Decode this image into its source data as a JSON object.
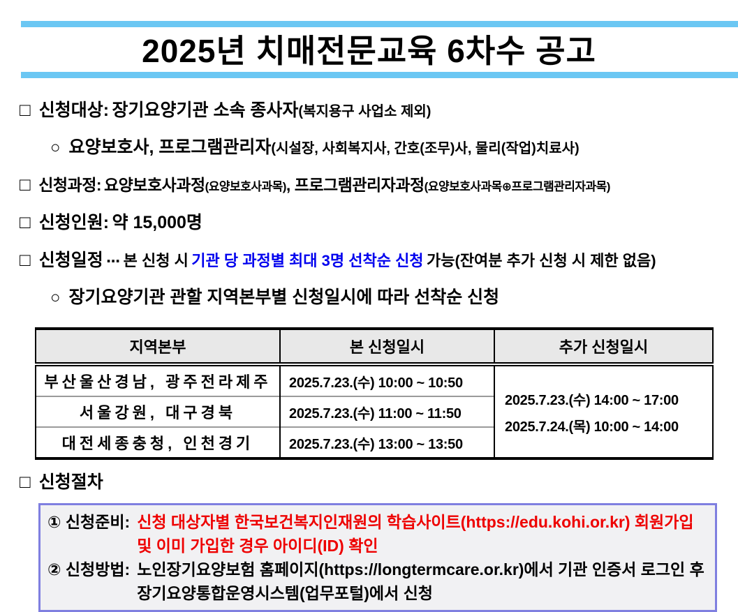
{
  "header": {
    "title": "2025년 치매전문교육 6차수 공고"
  },
  "lines": {
    "target": {
      "marker": "□",
      "heading": "신청대상:",
      "text": "장기요양기관 소속 종사자",
      "note": "(복지용구 사업소 제외)"
    },
    "target_sub": {
      "marker": "○",
      "text": "요양보호사, 프로그램관리자",
      "note": "(시설장, 사회복지사, 간호(조무)사, 물리(작업)치료사)"
    },
    "course": {
      "marker": "□",
      "heading": "신청과정:",
      "text1": "요양보호사과정",
      "note1": "(요양보호사과목)",
      "text2": ", 프로그램관리자과정",
      "note2": "(요양보호사과목⊕프로그램관리자과목)"
    },
    "quota": {
      "marker": "□",
      "heading": "신청인원:",
      "text": "약 15,000명"
    },
    "schedule": {
      "marker": "□",
      "heading": "신청일정",
      "ellipsis": "⋯",
      "pre": "본 신청 시",
      "highlight": "기관 당 과정별 최대 3명 선착순 신청",
      "post": "가능(잔여분 추가 신청 시 제한 없음)"
    },
    "schedule_sub": {
      "marker": "○",
      "text": "장기요양기관 관할 지역본부별 신청일시에 따라 선착순 신청"
    },
    "procedure": {
      "marker": "□",
      "heading": "신청절차"
    }
  },
  "table": {
    "headers": [
      "지역본부",
      "본 신청일시",
      "추가 신청일시"
    ],
    "rows": [
      {
        "region": "부산울산경남, 광주전라제주",
        "time": "2025.7.23.(수) 10:00 ~ 10:50"
      },
      {
        "region": "서울강원, 대구경북",
        "time": "2025.7.23.(수) 11:00 ~ 11:50"
      },
      {
        "region": "대전세종충청, 인천경기",
        "time": "2025.7.23.(수) 13:00 ~ 13:50"
      }
    ],
    "extra": [
      "2025.7.23.(수) 14:00 ~ 17:00",
      "2025.7.24.(목) 10:00 ~ 14:00"
    ]
  },
  "procedure_box": {
    "items": [
      {
        "marker": "①",
        "heading": "신청준비:",
        "text": "신청 대상자별 한국보건복지인재원의 학습사이트(https://edu.kohi.or.kr) 회원가입 및 이미 가입한 경우 아이디(ID) 확인"
      },
      {
        "marker": "②",
        "heading": "신청방법:",
        "text": "노인장기요양보험 홈페이지(https://longtermcare.or.kr)에서 기관 인증서 로그인 후 장기요양통합운영시스템(업무포털)에서 신청"
      }
    ]
  },
  "colors": {
    "accent": "#6bc7f3",
    "highlight_blue": "#0000ee",
    "alert_red": "#ee0000",
    "box_border": "#7f7fe0",
    "box_bg": "#f1f1f3",
    "table_header_bg": "#e8e8e8",
    "row_line": "#9a9a9a"
  }
}
